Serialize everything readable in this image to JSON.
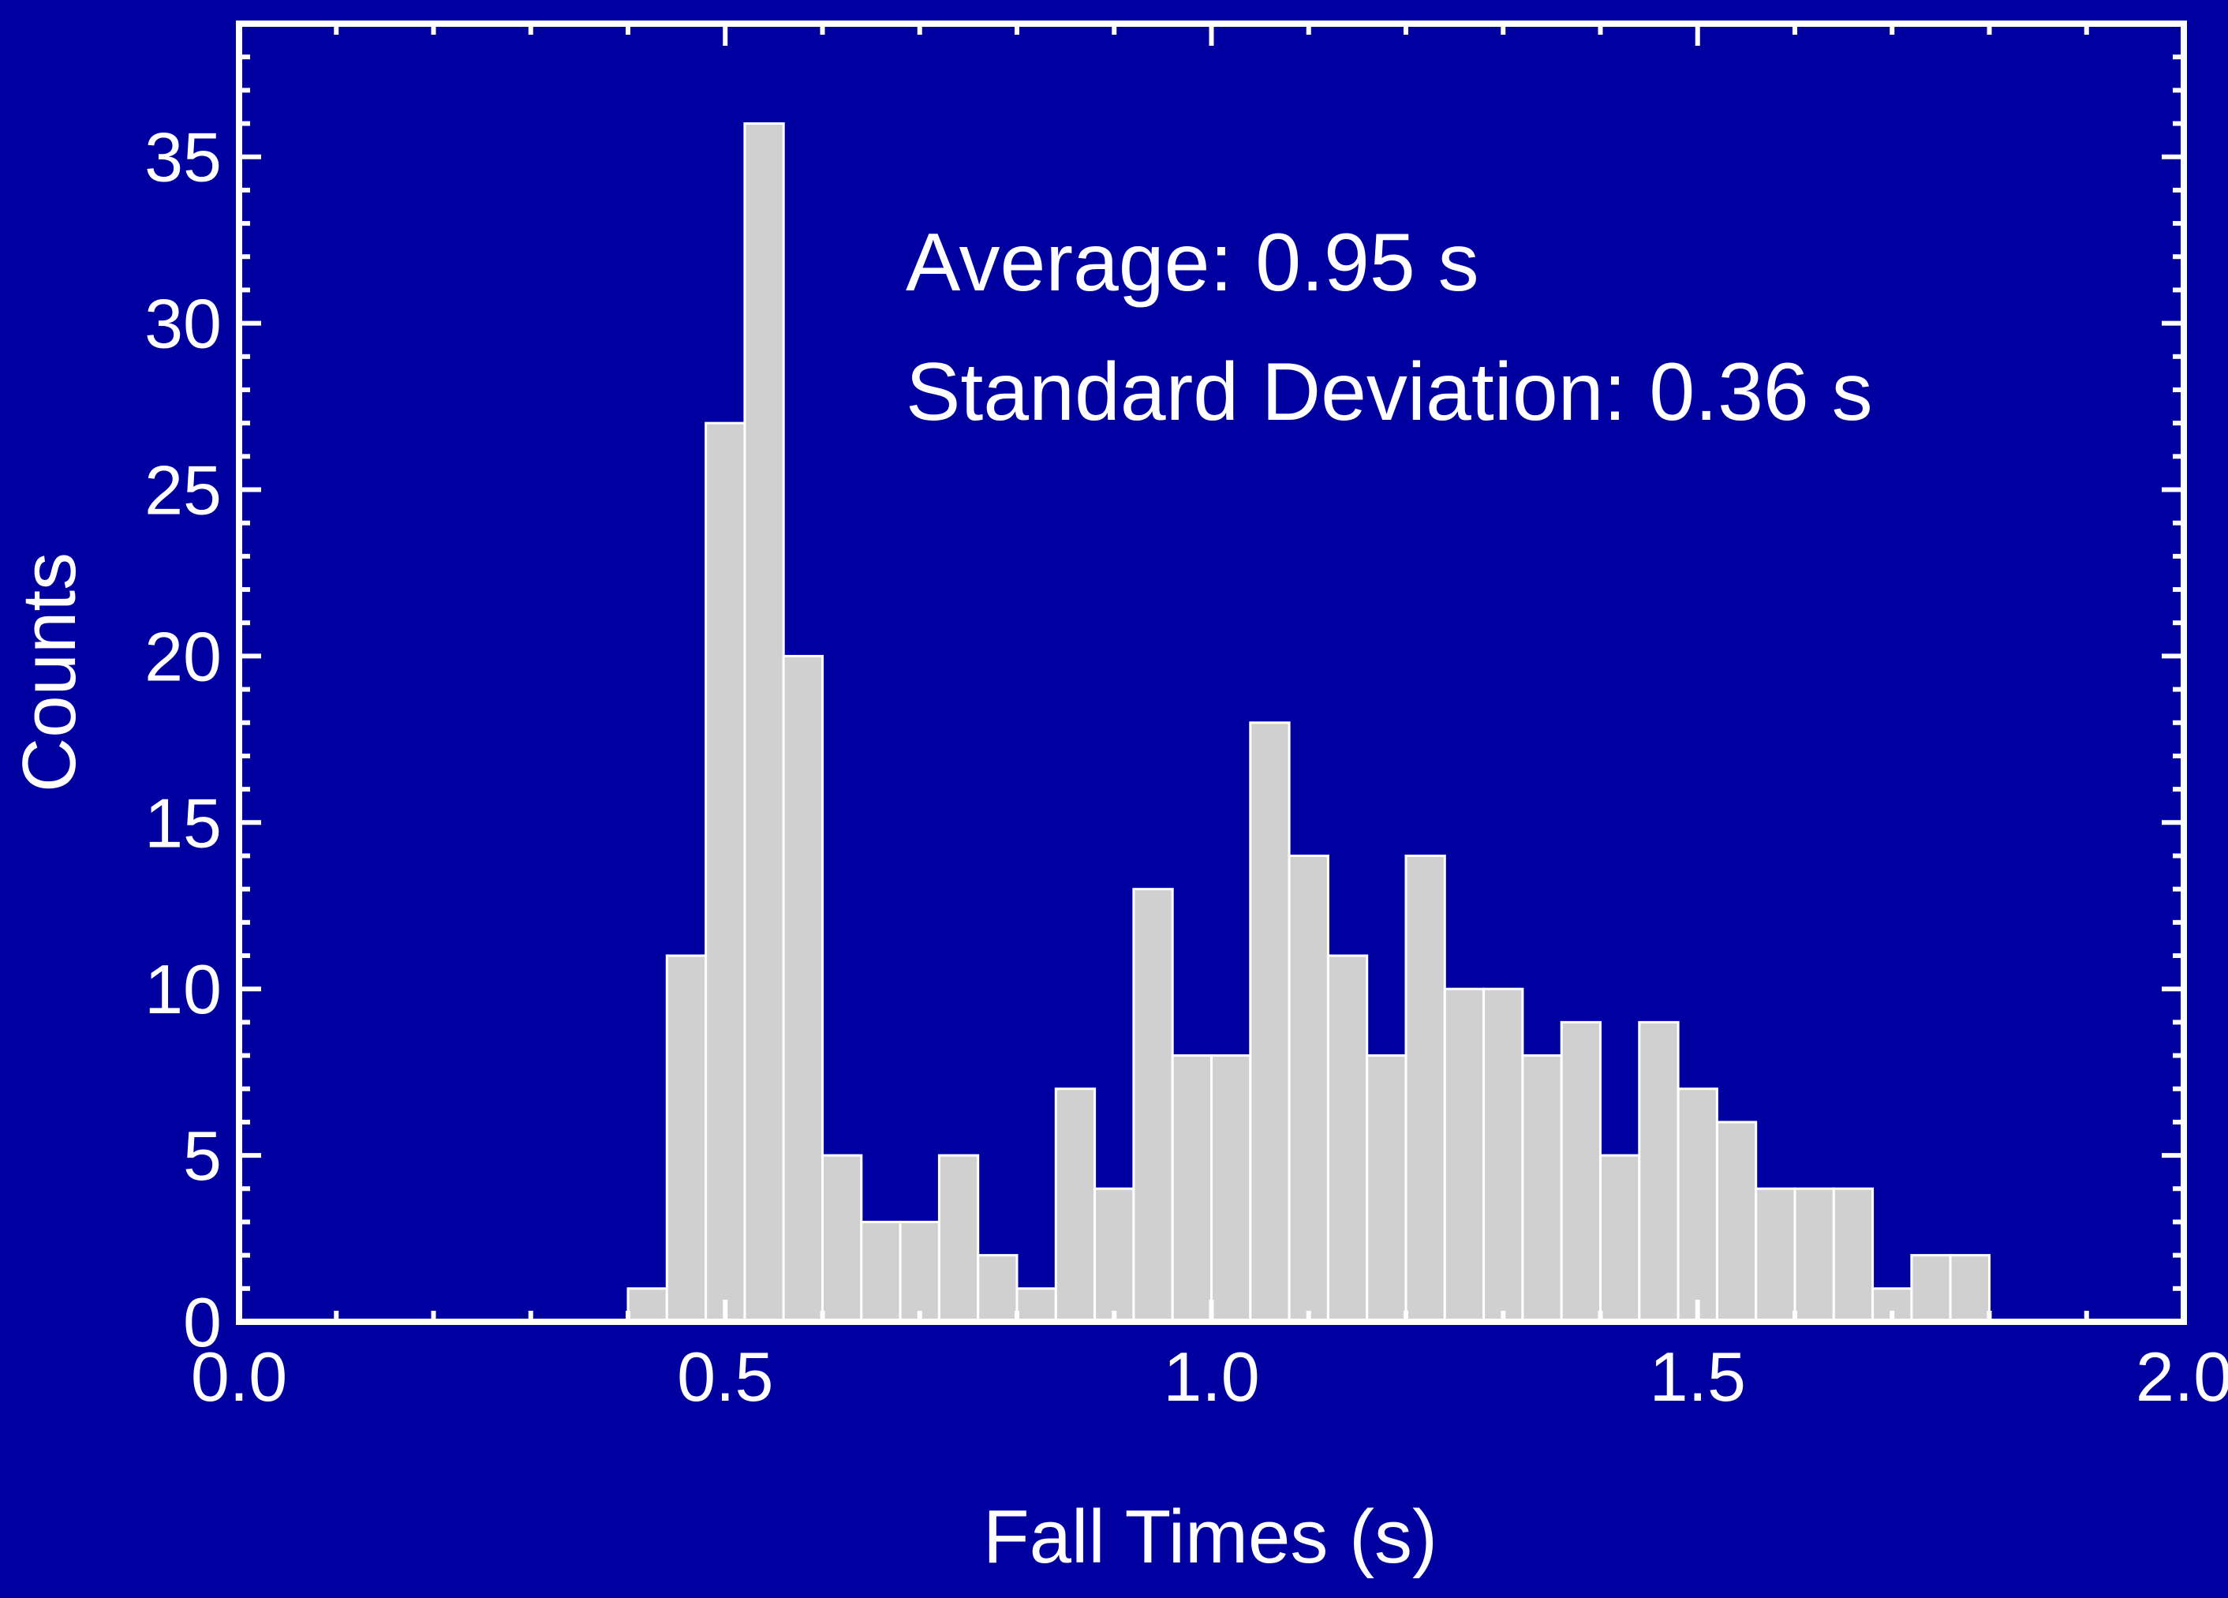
{
  "colors": {
    "background": "#0000a0",
    "frame": "#ffffff",
    "bar_fill": "#d0d0d0",
    "bar_edge": "#ffffff",
    "text": "#ffffff"
  },
  "chart_data": {
    "type": "bar",
    "title": "",
    "xlabel": "Fall Times (s)",
    "ylabel": "Counts",
    "xlim": [
      0.0,
      2.0
    ],
    "ylim": [
      0,
      39
    ],
    "bin_width": 0.04,
    "xticks": [
      {
        "value": 0.0,
        "label": "0.0"
      },
      {
        "value": 0.5,
        "label": "0.5"
      },
      {
        "value": 1.0,
        "label": "1.0"
      },
      {
        "value": 1.5,
        "label": "1.5"
      },
      {
        "value": 2.0,
        "label": "2.0"
      }
    ],
    "yticks": [
      {
        "value": 0,
        "label": "0"
      },
      {
        "value": 5,
        "label": "5"
      },
      {
        "value": 10,
        "label": "10"
      },
      {
        "value": 15,
        "label": "15"
      },
      {
        "value": 20,
        "label": "20"
      },
      {
        "value": 25,
        "label": "25"
      },
      {
        "value": 30,
        "label": "30"
      },
      {
        "value": 35,
        "label": "35"
      }
    ],
    "bins": [
      {
        "x0": 0.4,
        "count": 1
      },
      {
        "x0": 0.44,
        "count": 11
      },
      {
        "x0": 0.48,
        "count": 27
      },
      {
        "x0": 0.52,
        "count": 36
      },
      {
        "x0": 0.56,
        "count": 20
      },
      {
        "x0": 0.6,
        "count": 5
      },
      {
        "x0": 0.64,
        "count": 3
      },
      {
        "x0": 0.68,
        "count": 3
      },
      {
        "x0": 0.72,
        "count": 5
      },
      {
        "x0": 0.76,
        "count": 2
      },
      {
        "x0": 0.8,
        "count": 1
      },
      {
        "x0": 0.84,
        "count": 7
      },
      {
        "x0": 0.88,
        "count": 4
      },
      {
        "x0": 0.92,
        "count": 13
      },
      {
        "x0": 0.96,
        "count": 8
      },
      {
        "x0": 1.0,
        "count": 8
      },
      {
        "x0": 1.04,
        "count": 18
      },
      {
        "x0": 1.08,
        "count": 14
      },
      {
        "x0": 1.12,
        "count": 11
      },
      {
        "x0": 1.16,
        "count": 8
      },
      {
        "x0": 1.2,
        "count": 14
      },
      {
        "x0": 1.24,
        "count": 10
      },
      {
        "x0": 1.28,
        "count": 10
      },
      {
        "x0": 1.32,
        "count": 8
      },
      {
        "x0": 1.36,
        "count": 9
      },
      {
        "x0": 1.4,
        "count": 5
      },
      {
        "x0": 1.44,
        "count": 9
      },
      {
        "x0": 1.48,
        "count": 7
      },
      {
        "x0": 1.52,
        "count": 6
      },
      {
        "x0": 1.56,
        "count": 4
      },
      {
        "x0": 1.6,
        "count": 4
      },
      {
        "x0": 1.64,
        "count": 4
      },
      {
        "x0": 1.68,
        "count": 1
      },
      {
        "x0": 1.72,
        "count": 2
      },
      {
        "x0": 1.76,
        "count": 2
      }
    ],
    "annotations": [
      "Average: 0.95 s",
      "Standard Deviation: 0.36 s"
    ],
    "grid": false,
    "legend": "none"
  }
}
